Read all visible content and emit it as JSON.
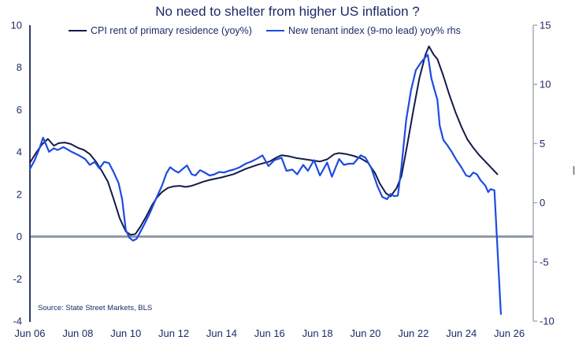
{
  "chart_data": {
    "type": "line",
    "title": "No need to shelter from higher US inflation ?",
    "source": "Source: State Street Markets, BLS",
    "legend_position": "top",
    "grid": false,
    "colors": {
      "cpi_line": "#131b4a",
      "tenant_line": "#1e4ce0",
      "zero_line": "#9096a7",
      "left_axis_line": "#1a2757",
      "right_axis_line": "#a3a6b3",
      "text": "#1c2a66"
    },
    "left_axis": {
      "range": [
        -4,
        10
      ],
      "ticks": [
        10,
        8,
        6,
        4,
        2,
        0,
        -2,
        -4
      ]
    },
    "right_axis": {
      "range": [
        -10,
        15
      ],
      "ticks": [
        15,
        10,
        5,
        0,
        -5,
        -10
      ]
    },
    "x_axis": {
      "range_years": [
        2006.5,
        2027.5
      ],
      "ticks": [
        {
          "label": "Jun 06",
          "t": 2006.5
        },
        {
          "label": "Jun 08",
          "t": 2008.5
        },
        {
          "label": "Jun 10",
          "t": 2010.5
        },
        {
          "label": "Jun 12",
          "t": 2012.5
        },
        {
          "label": "Jun 14",
          "t": 2014.5
        },
        {
          "label": "Jun 16",
          "t": 2016.5
        },
        {
          "label": "Jun 18",
          "t": 2018.5
        },
        {
          "label": "Jun 20",
          "t": 2020.5
        },
        {
          "label": "Jun 22",
          "t": 2022.5
        },
        {
          "label": "Jun 24",
          "t": 2024.5
        },
        {
          "label": "Jun 26",
          "t": 2026.5
        }
      ]
    },
    "zero_line_value": 0,
    "series": [
      {
        "name": "CPI rent of primary residence (yoy%)",
        "axis": "left",
        "color_key": "cpi_line",
        "x": [
          2006.5,
          2006.75,
          2007.0,
          2007.25,
          2007.5,
          2007.7,
          2007.95,
          2008.2,
          2008.5,
          2008.75,
          2009.0,
          2009.25,
          2009.5,
          2009.75,
          2010.0,
          2010.25,
          2010.5,
          2010.7,
          2010.9,
          2011.1,
          2011.35,
          2011.6,
          2011.8,
          2012.0,
          2012.25,
          2012.5,
          2012.75,
          2013.0,
          2013.25,
          2013.5,
          2013.75,
          2014.0,
          2014.5,
          2015.0,
          2015.5,
          2016.0,
          2016.5,
          2016.8,
          2017.0,
          2017.3,
          2017.6,
          2018.0,
          2018.3,
          2018.6,
          2018.9,
          2019.2,
          2019.4,
          2019.7,
          2020.0,
          2020.3,
          2020.6,
          2020.9,
          2021.1,
          2021.35,
          2021.55,
          2021.8,
          2022.0,
          2022.25,
          2022.5,
          2022.75,
          2023.0,
          2023.15,
          2023.35,
          2023.5,
          2023.75,
          2024.0,
          2024.25,
          2024.5,
          2024.75,
          2025.0,
          2025.25,
          2025.5,
          2025.75,
          2026.0
        ],
        "y": [
          3.5,
          3.95,
          4.35,
          4.62,
          4.3,
          4.42,
          4.45,
          4.38,
          4.2,
          4.1,
          3.9,
          3.55,
          3.1,
          2.6,
          1.75,
          0.85,
          0.25,
          0.08,
          0.12,
          0.45,
          0.95,
          1.5,
          1.85,
          2.1,
          2.3,
          2.38,
          2.4,
          2.35,
          2.4,
          2.5,
          2.6,
          2.68,
          2.8,
          2.95,
          3.2,
          3.4,
          3.55,
          3.75,
          3.85,
          3.8,
          3.72,
          3.65,
          3.6,
          3.55,
          3.65,
          3.9,
          3.95,
          3.9,
          3.82,
          3.7,
          3.5,
          3.0,
          2.5,
          2.05,
          1.9,
          2.3,
          2.85,
          4.4,
          6.0,
          7.5,
          8.6,
          9.0,
          8.6,
          8.4,
          7.6,
          6.7,
          5.9,
          5.2,
          4.6,
          4.2,
          3.85,
          3.55,
          3.25,
          2.95
        ]
      },
      {
        "name": "New tenant index (9-mo lead) yoy% rhs",
        "axis": "right",
        "color_key": "tenant_line",
        "x": [
          2006.5,
          2006.7,
          2006.9,
          2007.05,
          2007.3,
          2007.5,
          2007.65,
          2007.9,
          2008.2,
          2008.5,
          2008.8,
          2009.0,
          2009.2,
          2009.4,
          2009.6,
          2009.8,
          2010.0,
          2010.2,
          2010.35,
          2010.5,
          2010.65,
          2010.8,
          2010.95,
          2011.15,
          2011.3,
          2011.5,
          2011.75,
          2012.0,
          2012.2,
          2012.35,
          2012.55,
          2012.7,
          2012.9,
          2013.05,
          2013.25,
          2013.4,
          2013.6,
          2013.75,
          2014.0,
          2014.2,
          2014.4,
          2014.6,
          2014.8,
          2015.0,
          2015.25,
          2015.5,
          2015.75,
          2016.0,
          2016.2,
          2016.45,
          2016.7,
          2017.0,
          2017.2,
          2017.45,
          2017.65,
          2017.9,
          2018.1,
          2018.35,
          2018.6,
          2018.9,
          2019.1,
          2019.4,
          2019.6,
          2019.8,
          2020.0,
          2020.3,
          2020.5,
          2020.75,
          2021.0,
          2021.2,
          2021.4,
          2021.55,
          2021.7,
          2021.85,
          2022.0,
          2022.2,
          2022.4,
          2022.6,
          2022.8,
          2023.0,
          2023.1,
          2023.25,
          2023.4,
          2023.5,
          2023.6,
          2023.75,
          2023.9,
          2024.1,
          2024.3,
          2024.5,
          2024.7,
          2024.85,
          2025.0,
          2025.15,
          2025.3,
          2025.5,
          2025.62,
          2025.72,
          2025.88,
          2026.15
        ],
        "y": [
          2.85,
          3.6,
          4.6,
          5.5,
          4.3,
          4.6,
          4.45,
          4.7,
          4.35,
          4.05,
          3.7,
          3.2,
          3.45,
          2.9,
          3.45,
          3.35,
          2.55,
          1.65,
          0.3,
          -2.3,
          -2.95,
          -3.2,
          -3.05,
          -2.3,
          -1.7,
          -0.9,
          0.3,
          1.4,
          2.5,
          3.0,
          2.7,
          2.55,
          2.9,
          3.15,
          2.4,
          2.3,
          2.75,
          2.6,
          2.3,
          2.4,
          2.6,
          2.55,
          2.7,
          2.8,
          3.0,
          3.3,
          3.5,
          3.75,
          4.0,
          3.1,
          3.6,
          3.8,
          2.7,
          2.8,
          2.4,
          3.2,
          2.7,
          3.6,
          2.3,
          3.4,
          2.2,
          3.7,
          3.2,
          3.3,
          3.3,
          4.0,
          3.8,
          2.9,
          1.4,
          0.5,
          0.3,
          0.75,
          0.55,
          0.6,
          3.0,
          7.0,
          9.5,
          11.2,
          11.8,
          12.3,
          12.5,
          10.5,
          9.4,
          8.7,
          6.5,
          5.3,
          4.9,
          4.3,
          3.6,
          3.0,
          2.3,
          2.2,
          2.55,
          2.4,
          1.9,
          1.45,
          0.9,
          1.15,
          1.05,
          -9.4
        ]
      }
    ]
  }
}
